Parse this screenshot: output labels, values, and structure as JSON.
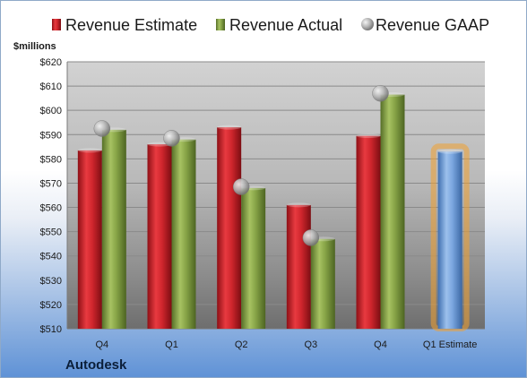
{
  "chart_data": {
    "type": "bar",
    "title": "",
    "unit_label": "$millions",
    "company": "Autodesk",
    "categories": [
      "Q4",
      "Q1",
      "Q2",
      "Q3",
      "Q4",
      "Q1 Estimate"
    ],
    "series": [
      {
        "name": "Revenue Estimate",
        "kind": "bar",
        "color": "#c8202a",
        "values": [
          583.5,
          586,
          593,
          561,
          589.5,
          null
        ]
      },
      {
        "name": "Revenue Actual",
        "kind": "bar",
        "color": "#7a9a3c",
        "values": [
          592,
          588,
          568,
          547,
          606.5,
          null
        ]
      },
      {
        "name": "Revenue GAAP",
        "kind": "marker",
        "color": "#a8a8a8",
        "values": [
          592.5,
          588.5,
          568.5,
          547.5,
          607,
          null
        ]
      },
      {
        "name": "",
        "kind": "bar",
        "color": "#6a9ad6",
        "highlight": "#f0a030",
        "values": [
          null,
          null,
          null,
          null,
          null,
          583
        ]
      }
    ],
    "y_ticks": [
      510,
      520,
      530,
      540,
      550,
      560,
      570,
      580,
      590,
      600,
      610,
      620
    ],
    "y_tick_labels": [
      "$510",
      "$520",
      "$530",
      "$540",
      "$550",
      "$560",
      "$570",
      "$580",
      "$590",
      "$600",
      "$610",
      "$620"
    ],
    "ylim": [
      510,
      620
    ],
    "grid": true,
    "legend_position": "top"
  }
}
